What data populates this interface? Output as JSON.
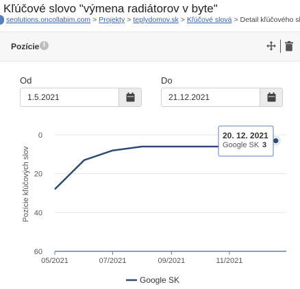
{
  "page": {
    "title": "Kľúčové slovo \"výmena radiátorov v byte\"",
    "breadcrumb": {
      "items": [
        "seolutions.oncollabim.com",
        "Projekty",
        "teplydomov.sk",
        "Kľúčové slová"
      ],
      "current": "Detail kľúčového slova",
      "separator": ">"
    }
  },
  "card": {
    "title": "Pozície",
    "info_icon": "i"
  },
  "filters": {
    "from_label": "Od",
    "from_value": "1.5.2021",
    "to_label": "Do",
    "to_value": "21.12.2021"
  },
  "tooltip": {
    "date": "20. 12. 2021",
    "series": "Google SK",
    "value": "3"
  },
  "chart_data": {
    "type": "line",
    "ylabel": "Pozície kľúčových slov",
    "xlabel": "",
    "y_reversed": true,
    "ylim": [
      0,
      60
    ],
    "y_ticks": [
      0,
      20,
      40,
      60
    ],
    "x_ticks": [
      "05/2021",
      "07/2021",
      "09/2021",
      "11/2021"
    ],
    "x": [
      "2021-05-01",
      "2021-06-01",
      "2021-07-01",
      "2021-08-01",
      "2021-09-01",
      "2021-10-01",
      "2021-11-01",
      "2021-12-20"
    ],
    "series": [
      {
        "name": "Google SK",
        "color": "#2f4b73",
        "values": [
          28,
          13,
          8,
          6,
          6,
          6,
          6,
          3
        ]
      }
    ],
    "legend": "bottom",
    "grid": true
  }
}
